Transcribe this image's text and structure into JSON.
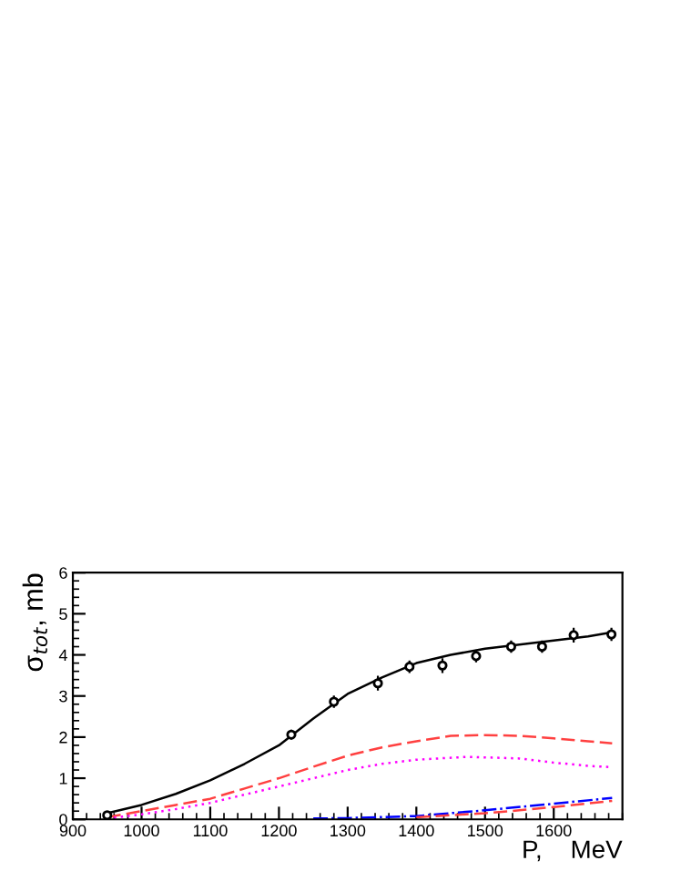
{
  "chart_data": {
    "type": "line",
    "xlabel": "P,    MeV",
    "ylabel": "σ$_{tot}$, mb",
    "xlim": [
      900,
      1700
    ],
    "ylim": [
      0,
      6
    ],
    "xticks": [
      900,
      1000,
      1100,
      1200,
      1300,
      1400,
      1500,
      1600
    ],
    "yticks": [
      0,
      1,
      2,
      3,
      4,
      5,
      6
    ],
    "grid": false,
    "legend": false,
    "series": [
      {
        "type": "scatter",
        "marker": "circle",
        "color": "#000000",
        "x": [
          950,
          1218,
          1280,
          1344,
          1390,
          1438,
          1487,
          1538,
          1583,
          1629,
          1684
        ],
        "values": [
          0.1,
          2.06,
          2.86,
          3.31,
          3.71,
          3.74,
          3.97,
          4.2,
          4.2,
          4.48,
          4.5
        ],
        "errors": [
          0.08,
          0.12,
          0.15,
          0.18,
          0.15,
          0.18,
          0.15,
          0.15,
          0.15,
          0.18,
          0.16
        ]
      },
      {
        "line_style": "solid",
        "color": "#000000",
        "x": [
          950,
          1000,
          1050,
          1100,
          1150,
          1200,
          1250,
          1300,
          1350,
          1400,
          1450,
          1500,
          1550,
          1600,
          1650,
          1685
        ],
        "values": [
          0.15,
          0.35,
          0.62,
          0.95,
          1.35,
          1.8,
          2.45,
          3.05,
          3.45,
          3.8,
          4.0,
          4.15,
          4.25,
          4.35,
          4.45,
          4.55
        ]
      },
      {
        "line_style": "dashed",
        "color": "#ff4040",
        "x": [
          950,
          1000,
          1050,
          1100,
          1150,
          1200,
          1250,
          1300,
          1350,
          1400,
          1450,
          1500,
          1550,
          1600,
          1650,
          1685
        ],
        "values": [
          0.05,
          0.2,
          0.35,
          0.5,
          0.75,
          1.0,
          1.28,
          1.55,
          1.75,
          1.9,
          2.03,
          2.05,
          2.03,
          1.97,
          1.9,
          1.85
        ]
      },
      {
        "line_style": "dotted",
        "color": "#ff00ff",
        "x": [
          950,
          1000,
          1050,
          1100,
          1150,
          1200,
          1250,
          1300,
          1350,
          1400,
          1475,
          1550,
          1600,
          1650,
          1685
        ],
        "values": [
          0.02,
          0.12,
          0.25,
          0.4,
          0.6,
          0.8,
          1.0,
          1.2,
          1.35,
          1.45,
          1.52,
          1.48,
          1.38,
          1.3,
          1.27
        ]
      },
      {
        "line_style": "dashdot",
        "color": "#0000ff",
        "x": [
          1250,
          1300,
          1400,
          1500,
          1600,
          1685
        ],
        "values": [
          0.02,
          0.03,
          0.08,
          0.22,
          0.38,
          0.52
        ]
      },
      {
        "line_style": "dashed",
        "color": "#ff4040",
        "x": [
          1400,
          1450,
          1500,
          1550,
          1600,
          1685
        ],
        "values": [
          0.05,
          0.1,
          0.15,
          0.22,
          0.3,
          0.45
        ]
      }
    ]
  }
}
